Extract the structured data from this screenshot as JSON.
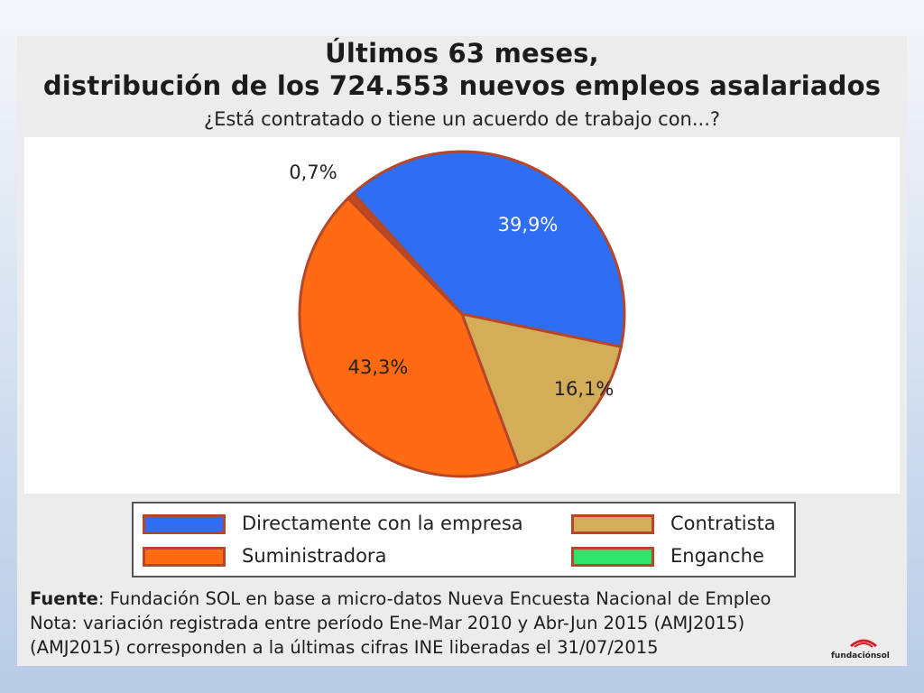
{
  "chart_data": {
    "type": "pie",
    "title": "Últimos 63 meses,",
    "subtitle_line": "distribución de los 724.553 nuevos empleos asalariados",
    "question": "¿Está contratado o tiene un acuerdo de trabajo con...?",
    "slices": [
      {
        "name": "Directamente con la empresa",
        "value": 39.9,
        "label": "39,9%",
        "color": "#2f6ef2",
        "label_color": "#ffffff"
      },
      {
        "name": "Contratista",
        "value": 16.1,
        "label": "16,1%",
        "color": "#d4ad58",
        "label_color": "#222222"
      },
      {
        "name": "Suministradora",
        "value": 43.3,
        "label": "43,3%",
        "color": "#ff6a12",
        "label_color": "#222222"
      },
      {
        "name": "Enganche",
        "value": 0.7,
        "label": "0,7%",
        "color": "#c04a1c",
        "label_color": "#222222"
      }
    ],
    "slice_border_color": "#b5462a",
    "legend": [
      {
        "name": "Directamente con la empresa",
        "color": "#2f6ef2"
      },
      {
        "name": "Contratista",
        "color": "#d4ad58"
      },
      {
        "name": "Suministradora",
        "color": "#ff6a12"
      },
      {
        "name": "Enganche",
        "color": "#2ee56b"
      }
    ]
  },
  "notes": {
    "source_label": "Fuente",
    "source_text": ": Fundación SOL en base a micro-datos Nueva Encuesta Nacional de Empleo",
    "note_line1": "Nota: variación registrada entre período Ene-Mar 2010 y Abr-Jun 2015 (AMJ2015)",
    "note_line2": "(AMJ2015) corresponden a la últimas cifras INE liberadas el 31/07/2015"
  },
  "logo": {
    "text": "fundaciónsol"
  }
}
